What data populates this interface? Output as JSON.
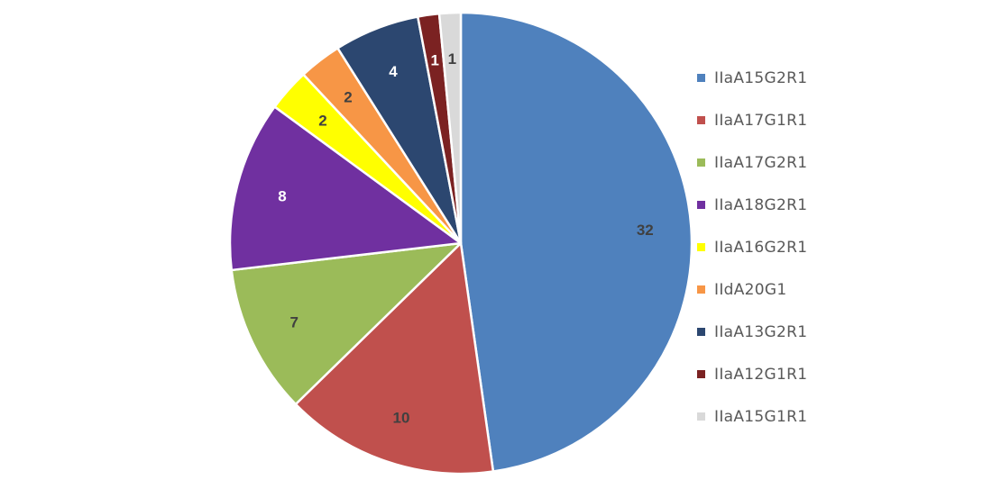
{
  "chart_data": {
    "type": "pie",
    "title": "",
    "start_angle_deg": 0,
    "direction": "clockwise",
    "legend_position": "right",
    "slices": [
      {
        "label": "IIaA15G2R1",
        "value": 32,
        "color": "#4F81BD",
        "label_color": "#404040"
      },
      {
        "label": "IIaA17G1R1",
        "value": 10,
        "color": "#C0504D",
        "label_color": "#404040"
      },
      {
        "label": "IIaA17G2R1",
        "value": 7,
        "color": "#9BBB59",
        "label_color": "#404040"
      },
      {
        "label": "IIaA18G2R1",
        "value": 8,
        "color": "#7030A0",
        "label_color": "#ffffff"
      },
      {
        "label": "IIaA16G2R1",
        "value": 2,
        "color": "#FFFF00",
        "label_color": "#404040"
      },
      {
        "label": "IIdA20G1",
        "value": 2,
        "color": "#F79646",
        "label_color": "#404040"
      },
      {
        "label": "IIaA13G2R1",
        "value": 4,
        "color": "#2C4770",
        "label_color": "#ffffff"
      },
      {
        "label": "IIaA12G1R1",
        "value": 1,
        "color": "#7B2222",
        "label_color": "#ffffff"
      },
      {
        "label": "IIaA15G1R1",
        "value": 1,
        "color": "#D9D9D9",
        "label_color": "#404040"
      }
    ]
  }
}
